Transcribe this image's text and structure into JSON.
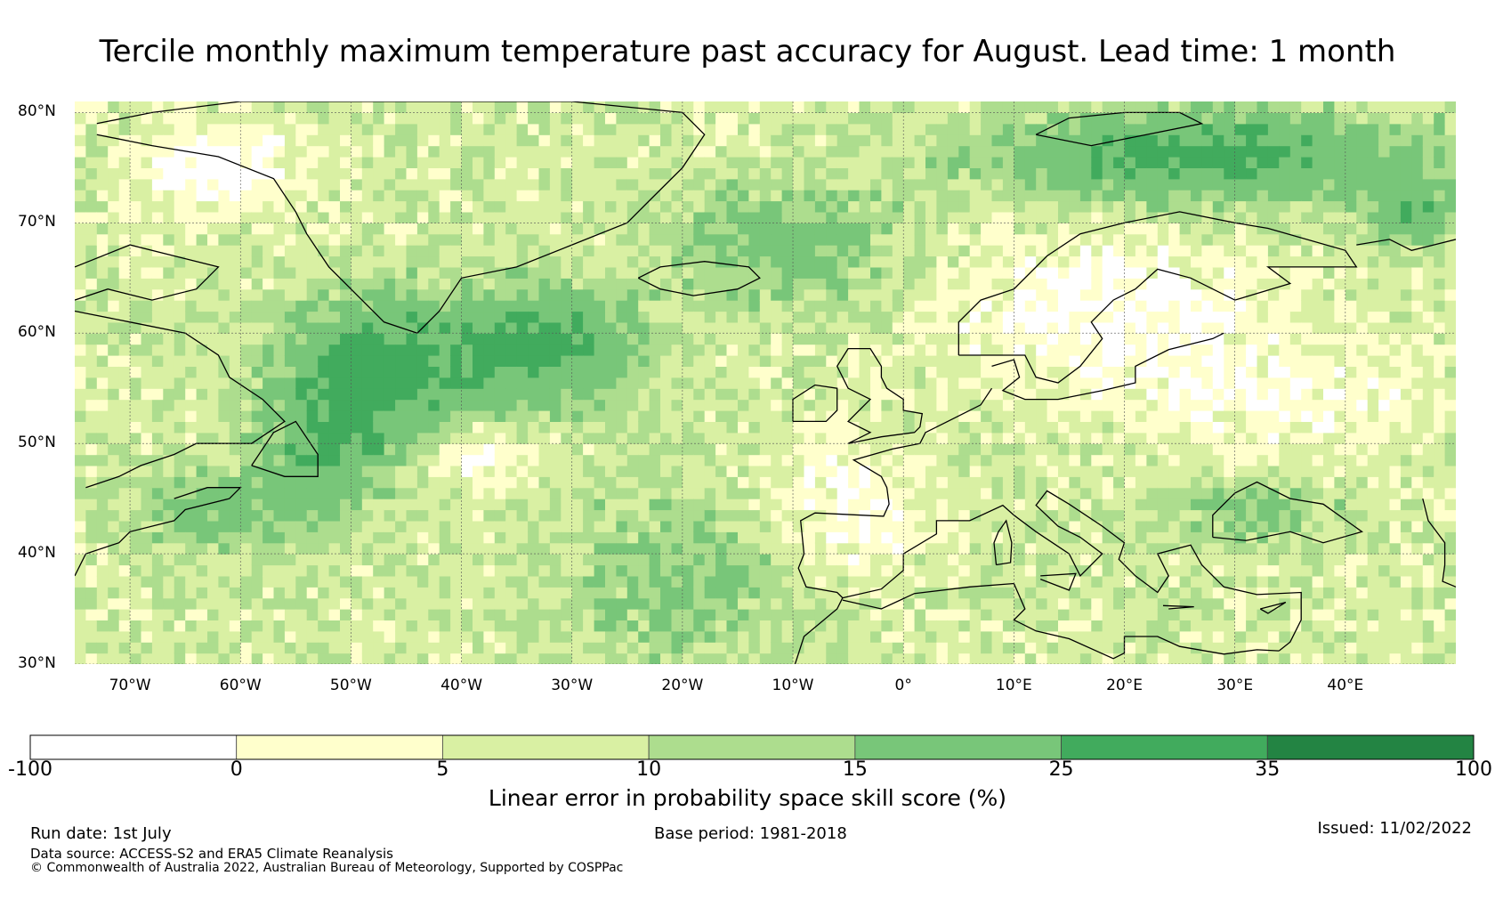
{
  "title": "Tercile monthly maximum temperature past accuracy for August. Lead time: 1 month",
  "map": {
    "extent": {
      "lon_min": -75,
      "lon_max": 50,
      "lat_min": 30,
      "lat_max": 81
    },
    "lat_labels": [
      {
        "lat": 80,
        "text": "80°N"
      },
      {
        "lat": 70,
        "text": "70°N"
      },
      {
        "lat": 60,
        "text": "60°N"
      },
      {
        "lat": 50,
        "text": "50°N"
      },
      {
        "lat": 40,
        "text": "40°N"
      },
      {
        "lat": 30,
        "text": "30°N"
      }
    ],
    "lon_labels": [
      {
        "lon": -70,
        "text": "70°W"
      },
      {
        "lon": -60,
        "text": "60°W"
      },
      {
        "lon": -50,
        "text": "50°W"
      },
      {
        "lon": -40,
        "text": "40°W"
      },
      {
        "lon": -30,
        "text": "30°W"
      },
      {
        "lon": -20,
        "text": "20°W"
      },
      {
        "lon": -10,
        "text": "10°W"
      },
      {
        "lon": 0,
        "text": "0°"
      },
      {
        "lon": 10,
        "text": "10°E"
      },
      {
        "lon": 20,
        "text": "20°E"
      },
      {
        "lon": 30,
        "text": "30°E"
      },
      {
        "lon": 40,
        "text": "40°E"
      }
    ]
  },
  "colorbar": {
    "ticks": [
      "-100",
      "0",
      "5",
      "10",
      "15",
      "25",
      "35",
      "100"
    ],
    "colors": [
      "#ffffff",
      "#ffffcc",
      "#d9f0a3",
      "#addd8e",
      "#78c679",
      "#41ab5d",
      "#238443"
    ],
    "label": "Linear error in probability space skill score (%)"
  },
  "footer": {
    "run_date": "Run date: 1st July",
    "base_period": "Base period: 1981-2018",
    "issued": "Issued: 11/02/2022",
    "data_source": "Data source: ACCESS-S2 and ERA5 Climate Reanalysis",
    "copyright": "© Commonwealth of Australia 2022, Australian Bureau of Meteorology, Supported by COSPPac"
  }
}
